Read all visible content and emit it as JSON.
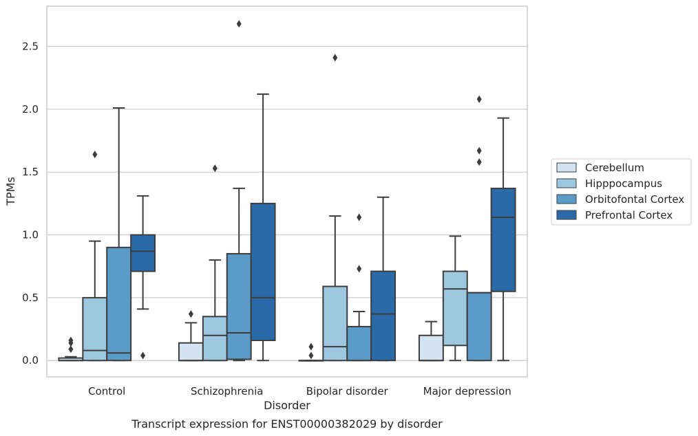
{
  "caption": "Transcript expression for ENST00000382029 by disorder",
  "chart_data": {
    "type": "box",
    "xlabel": "Disorder",
    "ylabel": "TPMs",
    "ylim": [
      -0.13,
      2.82
    ],
    "yticks": [
      0.0,
      0.5,
      1.0,
      1.5,
      2.0,
      2.5
    ],
    "ytick_labels": [
      "0.0",
      "0.5",
      "1.0",
      "1.5",
      "2.0",
      "2.5"
    ],
    "grid": "horizontal",
    "legend_position": "right",
    "categories": [
      "Control",
      "Schizophrenia",
      "Bipolar disorder",
      "Major depression"
    ],
    "series": [
      {
        "name": "Cerebellum",
        "color": "#d4e3f2",
        "boxes": [
          {
            "whislo": 0.0,
            "q1": 0.0,
            "med": 0.0,
            "q3": 0.02,
            "whishi": 0.03,
            "fliers": [
              0.09,
              0.14,
              0.16
            ]
          },
          {
            "whislo": 0.0,
            "q1": 0.0,
            "med": 0.0,
            "q3": 0.14,
            "whishi": 0.3,
            "fliers": [
              0.37
            ]
          },
          {
            "whislo": 0.0,
            "q1": 0.0,
            "med": 0.0,
            "q3": 0.0,
            "whishi": 0.0,
            "fliers": [
              0.04,
              0.11
            ]
          },
          {
            "whislo": 0.0,
            "q1": 0.0,
            "med": 0.0,
            "q3": 0.2,
            "whishi": 0.31,
            "fliers": []
          }
        ]
      },
      {
        "name": "Hipppocampus",
        "color": "#9dc6df",
        "boxes": [
          {
            "whislo": 0.0,
            "q1": 0.0,
            "med": 0.08,
            "q3": 0.5,
            "whishi": 0.95,
            "fliers": [
              1.64
            ]
          },
          {
            "whislo": 0.0,
            "q1": 0.0,
            "med": 0.2,
            "q3": 0.35,
            "whishi": 0.8,
            "fliers": [
              1.53
            ]
          },
          {
            "whislo": 0.0,
            "q1": 0.0,
            "med": 0.11,
            "q3": 0.59,
            "whishi": 1.15,
            "fliers": [
              2.41
            ]
          },
          {
            "whislo": 0.0,
            "q1": 0.12,
            "med": 0.57,
            "q3": 0.71,
            "whishi": 0.99,
            "fliers": []
          }
        ]
      },
      {
        "name": "Orbitofontal Cortex",
        "color": "#5b9bc8",
        "boxes": [
          {
            "whislo": 0.0,
            "q1": 0.0,
            "med": 0.06,
            "q3": 0.9,
            "whishi": 2.01,
            "fliers": []
          },
          {
            "whislo": 0.0,
            "q1": 0.01,
            "med": 0.22,
            "q3": 0.85,
            "whishi": 1.37,
            "fliers": [
              2.68
            ]
          },
          {
            "whislo": 0.0,
            "q1": 0.0,
            "med": 0.0,
            "q3": 0.27,
            "whishi": 0.39,
            "fliers": [
              0.73,
              1.14
            ]
          },
          {
            "whislo": 0.0,
            "q1": 0.0,
            "med": 0.54,
            "q3": 0.54,
            "whishi": 0.54,
            "fliers": [
              1.58,
              1.67,
              2.08
            ]
          }
        ]
      },
      {
        "name": "Prefrontal Cortex",
        "color": "#2b6aa8",
        "boxes": [
          {
            "whislo": 0.41,
            "q1": 0.71,
            "med": 0.87,
            "q3": 1.0,
            "whishi": 1.31,
            "fliers": [
              0.04
            ]
          },
          {
            "whislo": 0.0,
            "q1": 0.16,
            "med": 0.5,
            "q3": 1.25,
            "whishi": 2.12,
            "fliers": []
          },
          {
            "whislo": 0.0,
            "q1": 0.0,
            "med": 0.37,
            "q3": 0.71,
            "whishi": 1.3,
            "fliers": []
          },
          {
            "whislo": 0.0,
            "q1": 0.55,
            "med": 1.14,
            "q3": 1.37,
            "whishi": 1.93,
            "fliers": []
          }
        ]
      }
    ]
  }
}
